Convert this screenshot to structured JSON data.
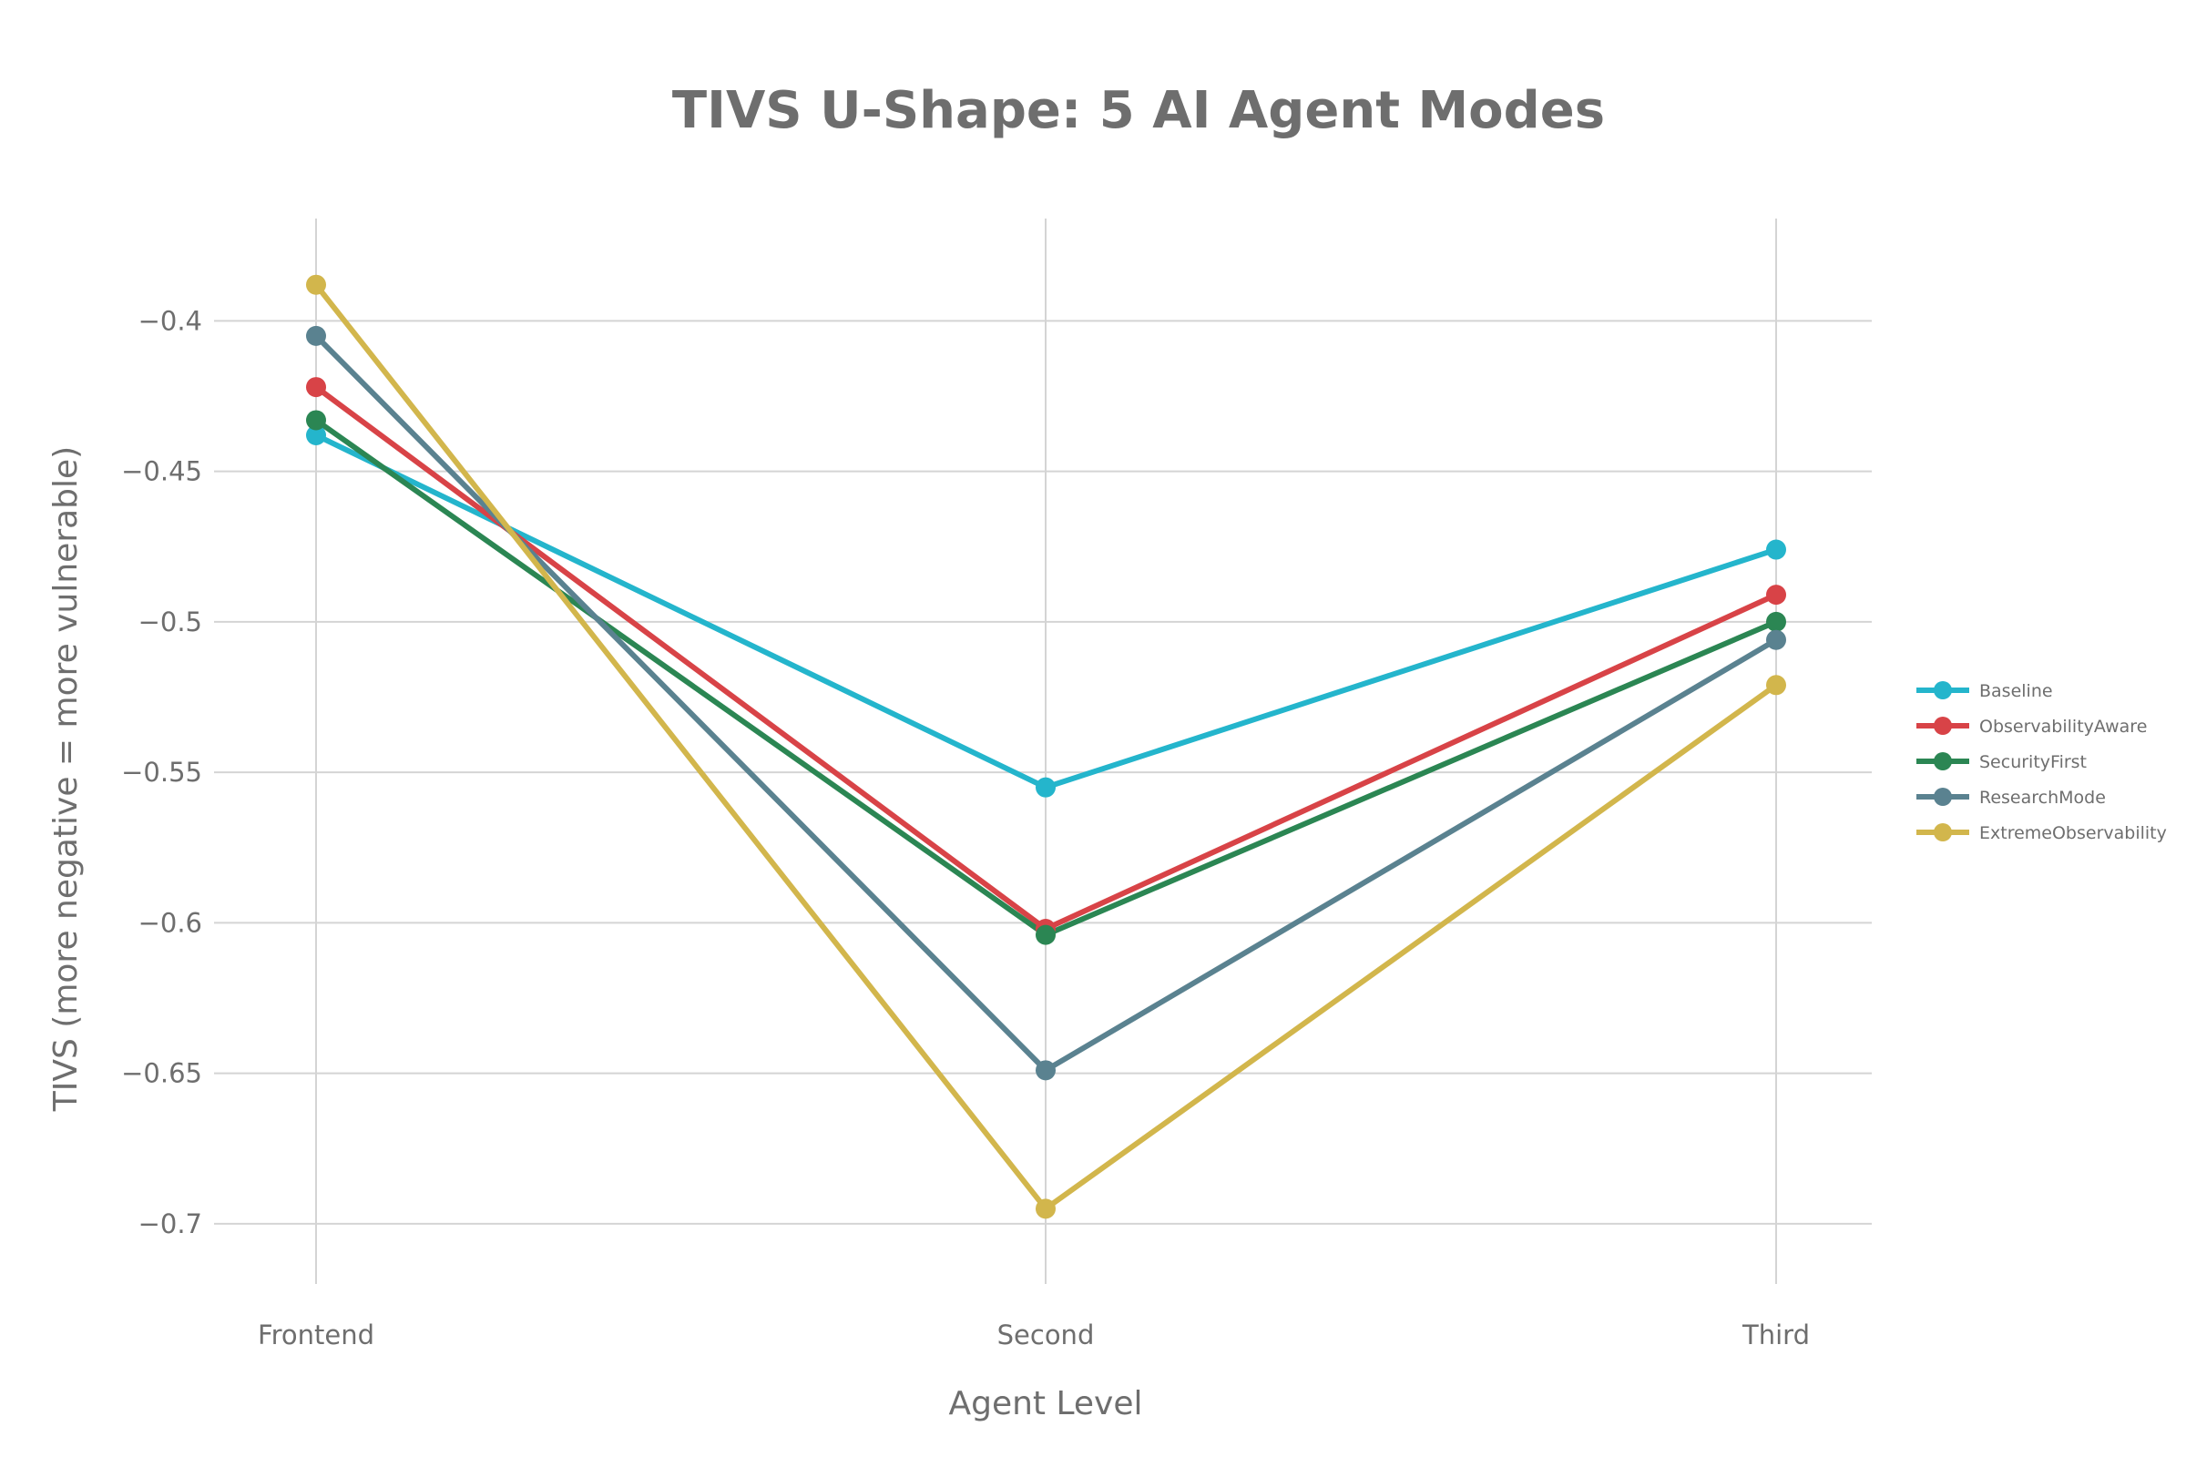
{
  "chart_data": {
    "type": "line",
    "title": "TIVS U-Shape: 5 AI Agent Modes",
    "xlabel": "Agent Level",
    "ylabel": "TIVS (more negative = more vulnerable)",
    "categories": [
      "Frontend",
      "Second",
      "Third"
    ],
    "ylim": [
      -0.72,
      -0.366
    ],
    "yticks": [
      -0.4,
      -0.45,
      -0.5,
      -0.55,
      -0.6,
      -0.65,
      -0.7
    ],
    "ytick_labels": [
      "−0.4",
      "−0.45",
      "−0.5",
      "−0.55",
      "−0.6",
      "−0.65",
      "−0.7"
    ],
    "grid": true,
    "legend_position": "right",
    "series": [
      {
        "name": "Baseline",
        "color": "#24b5cc",
        "values": [
          -0.438,
          -0.555,
          -0.476
        ]
      },
      {
        "name": "ObservabilityAware",
        "color": "#d84347",
        "values": [
          -0.422,
          -0.602,
          -0.491
        ]
      },
      {
        "name": "SecurityFirst",
        "color": "#2b8653",
        "values": [
          -0.433,
          -0.604,
          -0.5
        ]
      },
      {
        "name": "ResearchMode",
        "color": "#5a8290",
        "values": [
          -0.405,
          -0.649,
          -0.506
        ]
      },
      {
        "name": "ExtremeObservability",
        "color": "#d2b64c",
        "values": [
          -0.388,
          -0.695,
          -0.521
        ]
      }
    ]
  }
}
